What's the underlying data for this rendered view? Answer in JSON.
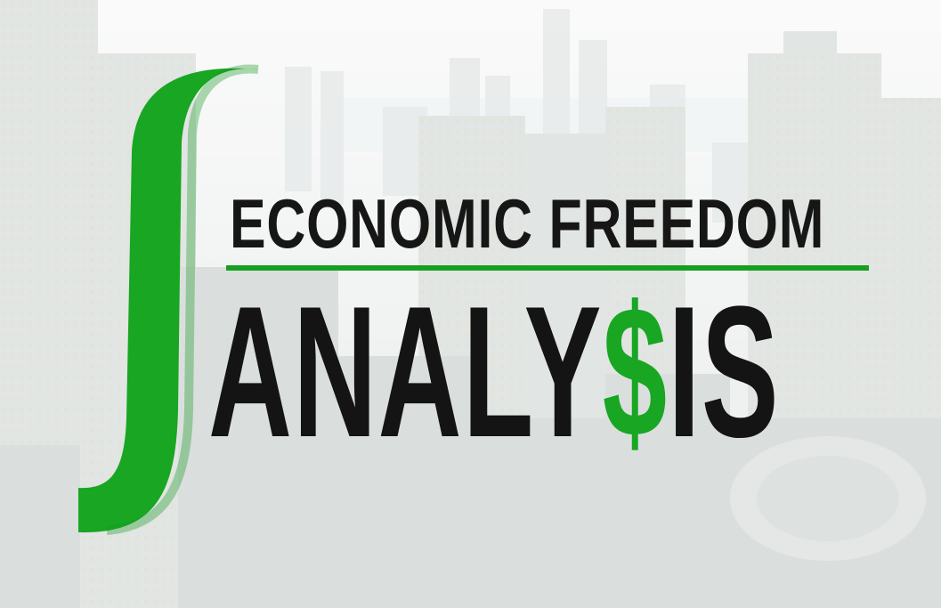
{
  "title": {
    "line1": "ECONOMIC FREEDOM",
    "line2_before": "ANALY",
    "line2_highlight": "$",
    "line2_after": "IS"
  },
  "colors": {
    "accent": "#16a021",
    "text": "#141414",
    "background_tint": "#e9ecea"
  },
  "decorations": {
    "symbol": "integral-sign",
    "background": "city-skyline-photo"
  }
}
